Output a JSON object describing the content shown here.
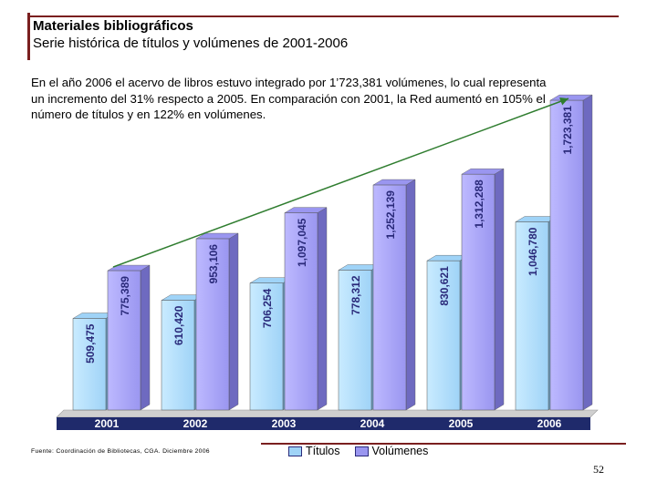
{
  "header": {
    "title": "Materiales bibliográficos",
    "subtitle": "Serie histórica de títulos y volúmenes de 2001-2006"
  },
  "description": "En el año 2006 el acervo de libros estuvo integrado por 1’723,381 volúmenes, lo cual representa un incremento del 31% respecto a 2005. En comparación con 2001, la Red aumentó en 105% el número de títulos y en 122% en volúmenes.",
  "source": "Fuente: Coordinación de Bibliotecas, CGA. Diciembre 2006",
  "page_number": "52",
  "colors": {
    "titulos": "#9fd3f7",
    "volumenes": "#9a96f0",
    "accent": "#7a1f1f",
    "trend": "#2f7d2f"
  },
  "chart_data": {
    "type": "bar",
    "title": "Serie histórica de títulos y volúmenes de 2001-2006",
    "categories": [
      "2001",
      "2002",
      "2003",
      "2004",
      "2005",
      "2006"
    ],
    "series": [
      {
        "name": "Títulos",
        "values": [
          509475,
          610420,
          706254,
          778312,
          830621,
          1046780
        ],
        "labels": [
          "509,475",
          "610,420",
          "706,254",
          "778,312",
          "830,621",
          "1,046,780"
        ]
      },
      {
        "name": "Volúmenes",
        "values": [
          775389,
          953106,
          1097045,
          1252139,
          1312288,
          1723381
        ],
        "labels": [
          "775,389",
          "953,106",
          "1,097,045",
          "1,252,139",
          "1,312,288",
          "1,723,381"
        ]
      }
    ],
    "ylim": [
      0,
      1800000
    ],
    "grid": false,
    "legend": "bottom",
    "annotation": "trend arrow from 2001 Volúmenes to 2006 Volúmenes"
  }
}
